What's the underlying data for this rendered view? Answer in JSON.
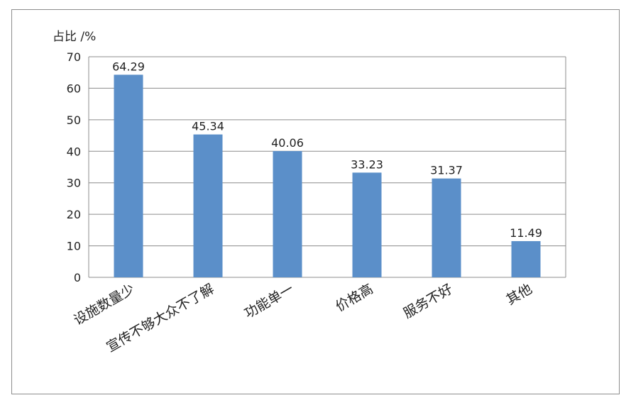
{
  "chart_data": {
    "type": "bar",
    "ylabel": "占比 /%",
    "categories": [
      "设施数量少",
      "宣传不够大众不了解",
      "功能单一",
      "价格高",
      "服务不好",
      "其他"
    ],
    "values": [
      64.29,
      45.34,
      40.06,
      33.23,
      31.37,
      11.49
    ],
    "value_labels": [
      "64.29",
      "45.34",
      "40.06",
      "33.23",
      "31.37",
      "11.49"
    ],
    "ylim": [
      0,
      70
    ],
    "yticks": [
      0,
      10,
      20,
      30,
      40,
      50,
      60,
      70
    ],
    "grid": true,
    "bar_color": "#5b8fc9",
    "grid_color": "#8c8c8c",
    "text_color": "#222222"
  }
}
